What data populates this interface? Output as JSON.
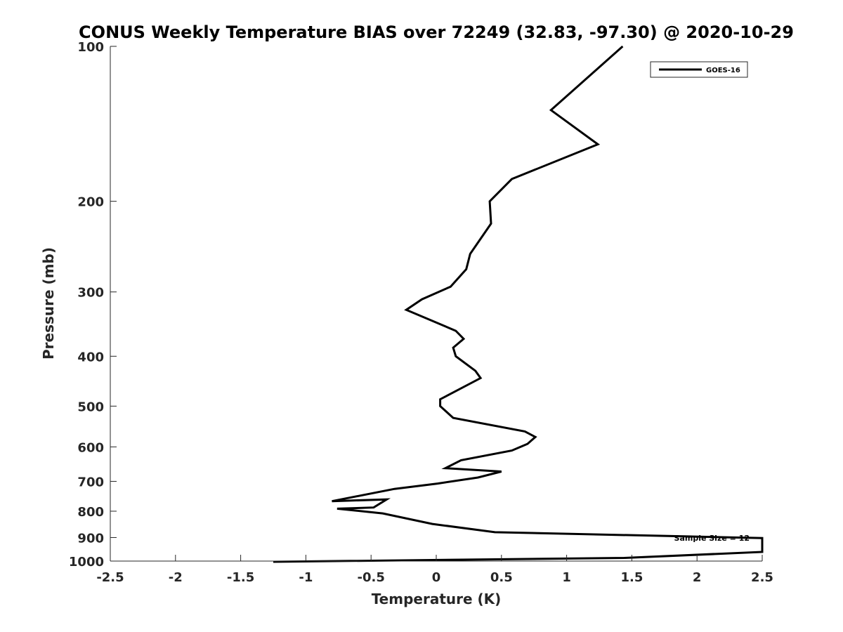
{
  "chart_data": {
    "type": "line",
    "title": "CONUS Weekly Temperature BIAS over 72249 (32.83, -97.30) @ 2020-10-29",
    "xlabel": "Temperature (K)",
    "ylabel": "Pressure (mb)",
    "xlim": [
      -2.5,
      2.5
    ],
    "ylim": [
      100,
      1000
    ],
    "y_scale": "log",
    "y_reversed": true,
    "x_ticks": [
      -2.5,
      -2,
      -1.5,
      -1,
      -0.5,
      0,
      0.5,
      1,
      1.5,
      2,
      2.5
    ],
    "x_tick_labels": [
      "-2.5",
      "-2",
      "-1.5",
      "-1",
      "-0.5",
      "0",
      "0.5",
      "1",
      "1.5",
      "2",
      "2.5"
    ],
    "y_ticks": [
      100,
      200,
      300,
      400,
      500,
      600,
      700,
      800,
      900,
      1000
    ],
    "y_tick_labels": [
      "100",
      "200",
      "300",
      "400",
      "500",
      "600",
      "700",
      "800",
      "900",
      "1000"
    ],
    "grid": false,
    "legend_position": "top-right",
    "series": [
      {
        "name": "GOES-16",
        "color": "#000000",
        "x": [
          1.43,
          0.88,
          1.24,
          0.58,
          0.41,
          0.42,
          0.26,
          0.23,
          0.11,
          -0.11,
          -0.23,
          0.15,
          0.21,
          0.13,
          0.15,
          0.3,
          0.34,
          0.03,
          0.03,
          0.13,
          0.68,
          0.76,
          0.7,
          0.58,
          0.19,
          0.07,
          0.5,
          0.32,
          0.01,
          -0.32,
          -0.8,
          -0.38,
          -0.48,
          -0.76,
          -0.41,
          -0.03,
          0.45,
          2.5,
          2.5,
          1.44,
          -1.25
        ],
        "y": [
          100,
          133,
          155,
          181,
          200,
          221,
          253,
          271,
          293,
          310,
          325,
          357,
          370,
          385,
          400,
          427,
          441,
          485,
          500,
          527,
          560,
          574,
          592,
          610,
          637,
          660,
          670,
          688,
          707,
          724,
          765,
          759,
          787,
          791,
          808,
          847,
          879,
          902,
          960,
          986,
          1003
        ]
      }
    ],
    "annotations": [
      "Sample Size = 12"
    ]
  }
}
